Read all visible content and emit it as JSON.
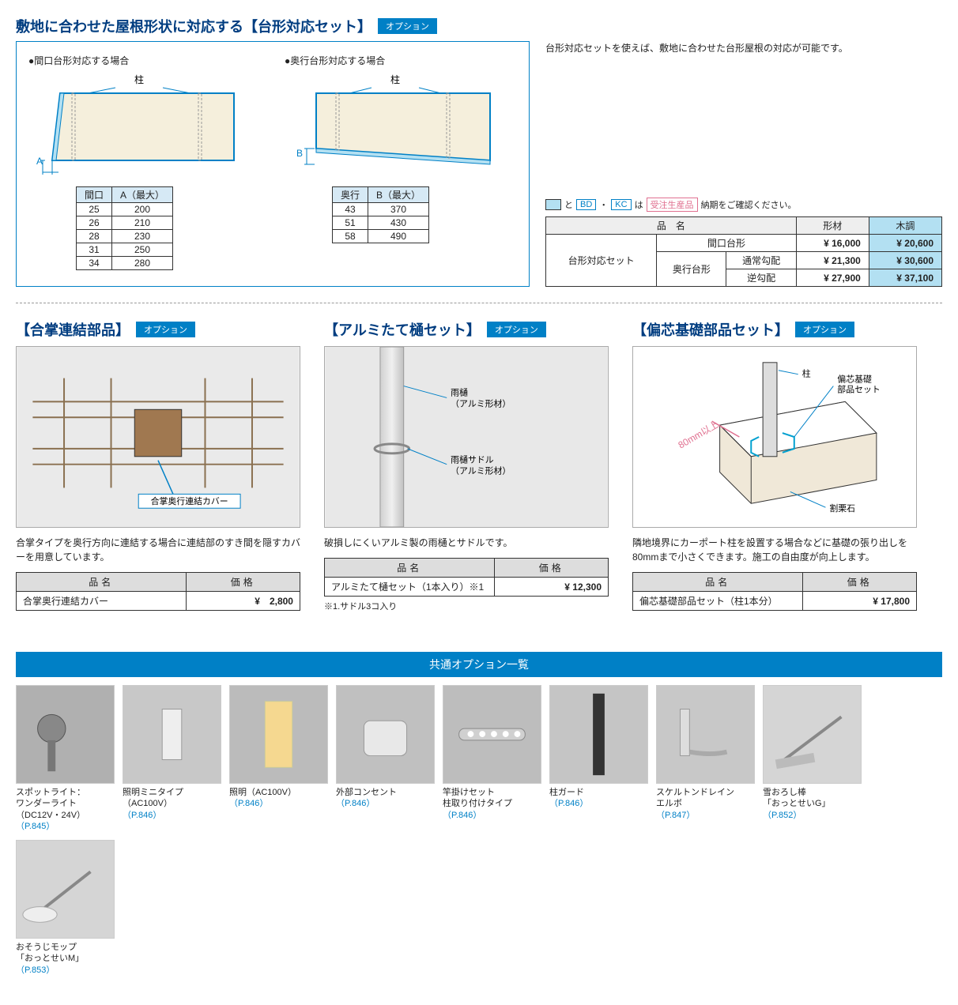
{
  "colors": {
    "primary": "#0080c6",
    "dark_blue": "#003d80",
    "light_blue": "#b3e0f2",
    "header_blue": "#d6e9f5",
    "pink": "#e07090"
  },
  "top": {
    "title": "敷地に合わせた屋根形状に対応する【台形対応セット】",
    "option_label": "オプション",
    "sub1": "●間口台形対応する場合",
    "sub2": "●奥行台形対応する場合",
    "pillar_label": "柱",
    "tableA": {
      "headers": [
        "間口",
        "A（最大）"
      ],
      "rows": [
        [
          "25",
          "200"
        ],
        [
          "26",
          "210"
        ],
        [
          "28",
          "230"
        ],
        [
          "31",
          "250"
        ],
        [
          "34",
          "280"
        ]
      ]
    },
    "tableB": {
      "headers": [
        "奥行",
        "B（最大）"
      ],
      "rows": [
        [
          "43",
          "370"
        ],
        [
          "51",
          "430"
        ],
        [
          "58",
          "490"
        ]
      ]
    },
    "right_text": "台形対応セットを使えば、敷地に合わせた台形屋根の対応が可能です。",
    "legend_and": "と",
    "legend_bd": "BD",
    "legend_sep": "・",
    "legend_kc": "KC",
    "legend_is": "は",
    "legend_order": "受注生産品",
    "legend_tail": "納期をご確認ください。",
    "price_table": {
      "headers": [
        "品　名",
        "形材",
        "木調"
      ],
      "group": "台形対応セット",
      "rows": [
        {
          "name": "間口台形",
          "sub": "",
          "p1": "¥  16,000",
          "p2": "¥  20,600"
        },
        {
          "name": "奥行台形",
          "sub": "通常勾配",
          "p1": "¥  21,300",
          "p2": "¥  30,600"
        },
        {
          "name": "",
          "sub": "逆勾配",
          "p1": "¥  27,900",
          "p2": "¥  37,100"
        }
      ]
    }
  },
  "mid": [
    {
      "title": "【合掌連結部品】",
      "desc": "合掌タイプを奥行方向に連結する場合に連結部のすき間を隠すカバーを用意しています。",
      "table": {
        "name": "合掌奥行連結カバー",
        "price": "¥　2,800"
      },
      "illus_labels": {
        "cover": "合掌奥行連結カバー"
      }
    },
    {
      "title": "【アルミたて樋セット】",
      "desc": "破損しにくいアルミ製の雨樋とサドルです。",
      "table": {
        "name": "アルミたて樋セット（1本入り）※1",
        "price": "¥  12,300"
      },
      "footnote": "※1.サドル3コ入り",
      "illus_labels": {
        "gutter": "雨樋\n（アルミ形材）",
        "saddle": "雨樋サドル\n（アルミ形材）"
      }
    },
    {
      "title": "【偏芯基礎部品セット】",
      "desc": "隣地境界にカーポート柱を設置する場合などに基礎の張り出しを80mmまで小さくできます。施工の自由度が向上します。",
      "table": {
        "name": "偏芯基礎部品セット（柱1本分）",
        "price": "¥  17,800"
      },
      "illus_labels": {
        "pillar": "柱",
        "set": "偏芯基礎\n部品セット",
        "dist": "80mm以上",
        "stone": "割栗石"
      }
    }
  ],
  "common": {
    "title": "共通オプション一覧",
    "items": [
      {
        "name": "スポットライト：\nワンダーライト\n（DC12V・24V）",
        "page": "（P.845）"
      },
      {
        "name": "照明ミニタイプ\n（AC100V）",
        "page": "（P.846）"
      },
      {
        "name": "照明（AC100V）",
        "page": "（P.846）"
      },
      {
        "name": "外部コンセント",
        "page": "（P.846）"
      },
      {
        "name": "竿掛けセット\n柱取り付けタイプ",
        "page": "（P.846）"
      },
      {
        "name": "柱ガード",
        "page": "（P.846）"
      },
      {
        "name": "スケルトンドレイン\nエルボ",
        "page": "（P.847）"
      },
      {
        "name": "雪おろし棒\n「おっとせいG」",
        "page": "（P.852）"
      },
      {
        "name": "おそうじモップ\n「おっとせいM」",
        "page": "（P.853）"
      }
    ]
  },
  "h_name": "品名",
  "h_price": "価格"
}
